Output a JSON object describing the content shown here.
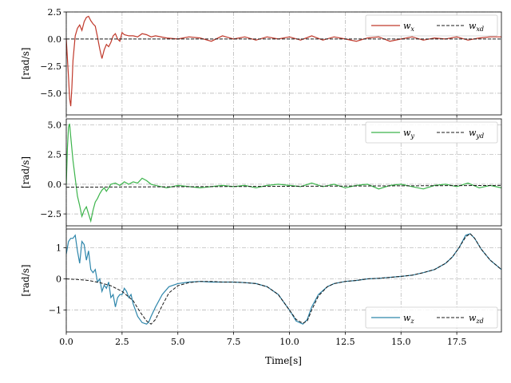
{
  "chart_data": [
    {
      "type": "line",
      "ylabel": "[rad/s]",
      "xlim": [
        0,
        19.5
      ],
      "ylim": [
        -7,
        2.5
      ],
      "yticks": [
        2.5,
        0.0,
        -2.5,
        -5.0
      ],
      "ytick_labels": [
        "2.5",
        "0.0",
        "−2.5",
        "−5.0"
      ],
      "grid": true,
      "legend_position": "top-right",
      "series": [
        {
          "name": "wx",
          "name_main": "w",
          "name_sub": "x",
          "color": "#c0392b",
          "style": "solid",
          "x": [
            0.0,
            0.1,
            0.15,
            0.2,
            0.25,
            0.3,
            0.4,
            0.5,
            0.6,
            0.7,
            0.8,
            0.9,
            1.0,
            1.1,
            1.2,
            1.3,
            1.4,
            1.5,
            1.6,
            1.7,
            1.8,
            1.9,
            2.0,
            2.1,
            2.2,
            2.3,
            2.4,
            2.5,
            2.6,
            2.8,
            3.0,
            3.2,
            3.4,
            3.6,
            3.8,
            4.0,
            4.5,
            5.0,
            5.5,
            6.0,
            6.5,
            7.0,
            7.5,
            8.0,
            8.5,
            9.0,
            9.5,
            10.0,
            10.5,
            11.0,
            11.5,
            12.0,
            12.5,
            13.0,
            13.5,
            14.0,
            14.5,
            15.0,
            15.5,
            16.0,
            16.5,
            17.0,
            17.5,
            18.0,
            18.5,
            19.0,
            19.5
          ],
          "y": [
            0.0,
            -3.5,
            -5.5,
            -6.2,
            -4.5,
            -2.0,
            0.3,
            1.0,
            1.3,
            0.8,
            1.6,
            2.0,
            2.1,
            1.7,
            1.4,
            1.2,
            0.2,
            -0.9,
            -1.8,
            -1.0,
            -0.5,
            -0.7,
            -0.3,
            0.3,
            0.5,
            0.0,
            -0.2,
            0.6,
            0.4,
            0.3,
            0.3,
            0.2,
            0.5,
            0.4,
            0.2,
            0.3,
            0.1,
            0.0,
            0.2,
            0.1,
            -0.2,
            0.3,
            0.0,
            0.2,
            -0.1,
            0.2,
            0.0,
            0.2,
            -0.1,
            0.3,
            -0.1,
            0.2,
            0.0,
            -0.2,
            0.1,
            0.2,
            -0.2,
            0.0,
            0.2,
            -0.1,
            0.1,
            0.0,
            0.2,
            -0.1,
            0.1,
            0.2,
            0.2
          ]
        },
        {
          "name": "wxd",
          "name_main": "w",
          "name_sub": "xd",
          "color": "#1a1a1a",
          "style": "dashed",
          "x": [
            0.0,
            19.5
          ],
          "y": [
            0.0,
            0.0
          ]
        }
      ]
    },
    {
      "type": "line",
      "ylabel": "[rad/s]",
      "xlim": [
        0,
        19.5
      ],
      "ylim": [
        -3.5,
        5.5
      ],
      "yticks": [
        5.0,
        2.5,
        0.0,
        -2.5
      ],
      "ytick_labels": [
        "5.0",
        "2.5",
        "0.0",
        "−2.5"
      ],
      "grid": true,
      "legend_position": "top-right",
      "series": [
        {
          "name": "wy",
          "name_main": "w",
          "name_sub": "y",
          "color": "#3cb44b",
          "style": "solid",
          "x": [
            0.0,
            0.05,
            0.1,
            0.15,
            0.2,
            0.3,
            0.4,
            0.5,
            0.6,
            0.7,
            0.8,
            0.9,
            1.0,
            1.1,
            1.2,
            1.3,
            1.4,
            1.5,
            1.6,
            1.7,
            1.8,
            2.0,
            2.2,
            2.4,
            2.6,
            2.8,
            3.0,
            3.2,
            3.4,
            3.6,
            3.8,
            4.0,
            4.5,
            5.0,
            5.5,
            6.0,
            6.5,
            7.0,
            7.5,
            8.0,
            8.5,
            9.0,
            9.5,
            10.0,
            10.5,
            11.0,
            11.5,
            12.0,
            12.5,
            13.0,
            13.5,
            14.0,
            14.5,
            15.0,
            15.5,
            16.0,
            16.5,
            17.0,
            17.5,
            18.0,
            18.5,
            19.0,
            19.5
          ],
          "y": [
            0.0,
            3.0,
            4.8,
            5.1,
            4.0,
            2.0,
            0.5,
            -1.0,
            -1.8,
            -2.7,
            -2.2,
            -1.9,
            -2.5,
            -3.1,
            -2.2,
            -1.5,
            -1.2,
            -0.8,
            -0.5,
            -0.3,
            -0.6,
            0.0,
            0.1,
            -0.1,
            0.2,
            0.0,
            0.2,
            0.1,
            0.5,
            0.3,
            0.0,
            -0.1,
            -0.3,
            -0.1,
            -0.2,
            -0.3,
            -0.2,
            -0.1,
            -0.2,
            -0.1,
            -0.3,
            -0.1,
            0.0,
            -0.1,
            -0.2,
            0.1,
            -0.2,
            0.0,
            -0.3,
            -0.1,
            0.0,
            -0.4,
            -0.1,
            0.0,
            -0.2,
            -0.4,
            -0.1,
            0.0,
            -0.2,
            0.1,
            -0.3,
            -0.1,
            -0.3
          ]
        },
        {
          "name": "wyd",
          "name_main": "w",
          "name_sub": "yd",
          "color": "#1a1a1a",
          "style": "dashed",
          "x": [
            0.0,
            19.5
          ],
          "y": [
            -0.25,
            -0.1
          ]
        }
      ]
    },
    {
      "type": "line",
      "ylabel": "[rad/s]",
      "xlabel": "Time[s]",
      "xlim": [
        0,
        19.5
      ],
      "ylim": [
        -1.7,
        1.6
      ],
      "yticks": [
        1,
        0,
        -1
      ],
      "ytick_labels": [
        "1",
        "0",
        "−1"
      ],
      "xticks": [
        0.0,
        2.5,
        5.0,
        7.5,
        10.0,
        12.5,
        15.0,
        17.5
      ],
      "xtick_labels": [
        "0.0",
        "2.5",
        "5.0",
        "7.5",
        "10.0",
        "12.5",
        "15.0",
        "17.5"
      ],
      "grid": true,
      "legend_position": "bottom-right",
      "series": [
        {
          "name": "wz",
          "name_main": "w",
          "name_sub": "z",
          "color": "#2e86ab",
          "style": "solid",
          "x": [
            0.0,
            0.1,
            0.2,
            0.3,
            0.4,
            0.5,
            0.6,
            0.7,
            0.8,
            0.9,
            1.0,
            1.1,
            1.2,
            1.3,
            1.4,
            1.5,
            1.6,
            1.7,
            1.8,
            1.9,
            2.0,
            2.1,
            2.2,
            2.3,
            2.4,
            2.5,
            2.6,
            2.7,
            2.8,
            2.9,
            3.0,
            3.2,
            3.4,
            3.6,
            3.7,
            3.8,
            4.0,
            4.3,
            4.6,
            5.0,
            5.5,
            6.0,
            6.5,
            7.0,
            7.5,
            8.0,
            8.5,
            9.0,
            9.5,
            10.0,
            10.3,
            10.6,
            10.8,
            11.0,
            11.3,
            11.7,
            12.0,
            12.5,
            13.0,
            13.5,
            14.0,
            14.5,
            15.0,
            15.5,
            16.0,
            16.5,
            17.0,
            17.3,
            17.6,
            17.9,
            18.1,
            18.3,
            18.6,
            19.0,
            19.5
          ],
          "y": [
            0.8,
            1.2,
            1.3,
            1.3,
            1.4,
            0.9,
            0.5,
            1.2,
            1.1,
            0.6,
            0.9,
            0.3,
            0.2,
            0.3,
            -0.1,
            0.0,
            -0.4,
            -0.2,
            -0.3,
            -0.1,
            -0.6,
            -0.5,
            -0.9,
            -0.6,
            -0.5,
            -0.5,
            -0.3,
            -0.4,
            -0.6,
            -0.5,
            -0.8,
            -1.2,
            -1.4,
            -1.45,
            -1.38,
            -1.2,
            -0.9,
            -0.5,
            -0.25,
            -0.15,
            -0.1,
            -0.08,
            -0.1,
            -0.1,
            -0.1,
            -0.12,
            -0.15,
            -0.25,
            -0.5,
            -1.0,
            -1.35,
            -1.45,
            -1.3,
            -0.9,
            -0.5,
            -0.25,
            -0.15,
            -0.08,
            -0.05,
            0.0,
            0.02,
            0.05,
            0.08,
            0.12,
            0.2,
            0.3,
            0.5,
            0.7,
            1.0,
            1.4,
            1.45,
            1.3,
            0.95,
            0.6,
            0.3
          ]
        },
        {
          "name": "wzd",
          "name_main": "w",
          "name_sub": "zd",
          "color": "#1a1a1a",
          "style": "dashed",
          "x": [
            0.0,
            0.5,
            1.0,
            1.5,
            2.0,
            2.5,
            3.0,
            3.3,
            3.6,
            3.8,
            4.0,
            4.3,
            4.6,
            5.0,
            5.5,
            6.0,
            6.5,
            7.0,
            7.5,
            8.0,
            8.5,
            9.0,
            9.5,
            10.0,
            10.3,
            10.6,
            10.8,
            11.0,
            11.3,
            11.7,
            12.0,
            12.5,
            13.0,
            13.5,
            14.0,
            14.5,
            15.0,
            15.5,
            16.0,
            16.5,
            17.0,
            17.3,
            17.6,
            17.9,
            18.1,
            18.3,
            18.6,
            19.0,
            19.5
          ],
          "y": [
            0.0,
            -0.02,
            -0.05,
            -0.12,
            -0.22,
            -0.4,
            -0.7,
            -1.05,
            -1.35,
            -1.45,
            -1.3,
            -0.85,
            -0.45,
            -0.22,
            -0.12,
            -0.08,
            -0.08,
            -0.1,
            -0.1,
            -0.12,
            -0.15,
            -0.25,
            -0.5,
            -1.0,
            -1.3,
            -1.42,
            -1.35,
            -1.0,
            -0.55,
            -0.25,
            -0.15,
            -0.08,
            -0.05,
            0.0,
            0.02,
            0.05,
            0.08,
            0.12,
            0.2,
            0.3,
            0.5,
            0.7,
            1.0,
            1.35,
            1.45,
            1.3,
            0.95,
            0.6,
            0.3
          ]
        }
      ]
    }
  ]
}
